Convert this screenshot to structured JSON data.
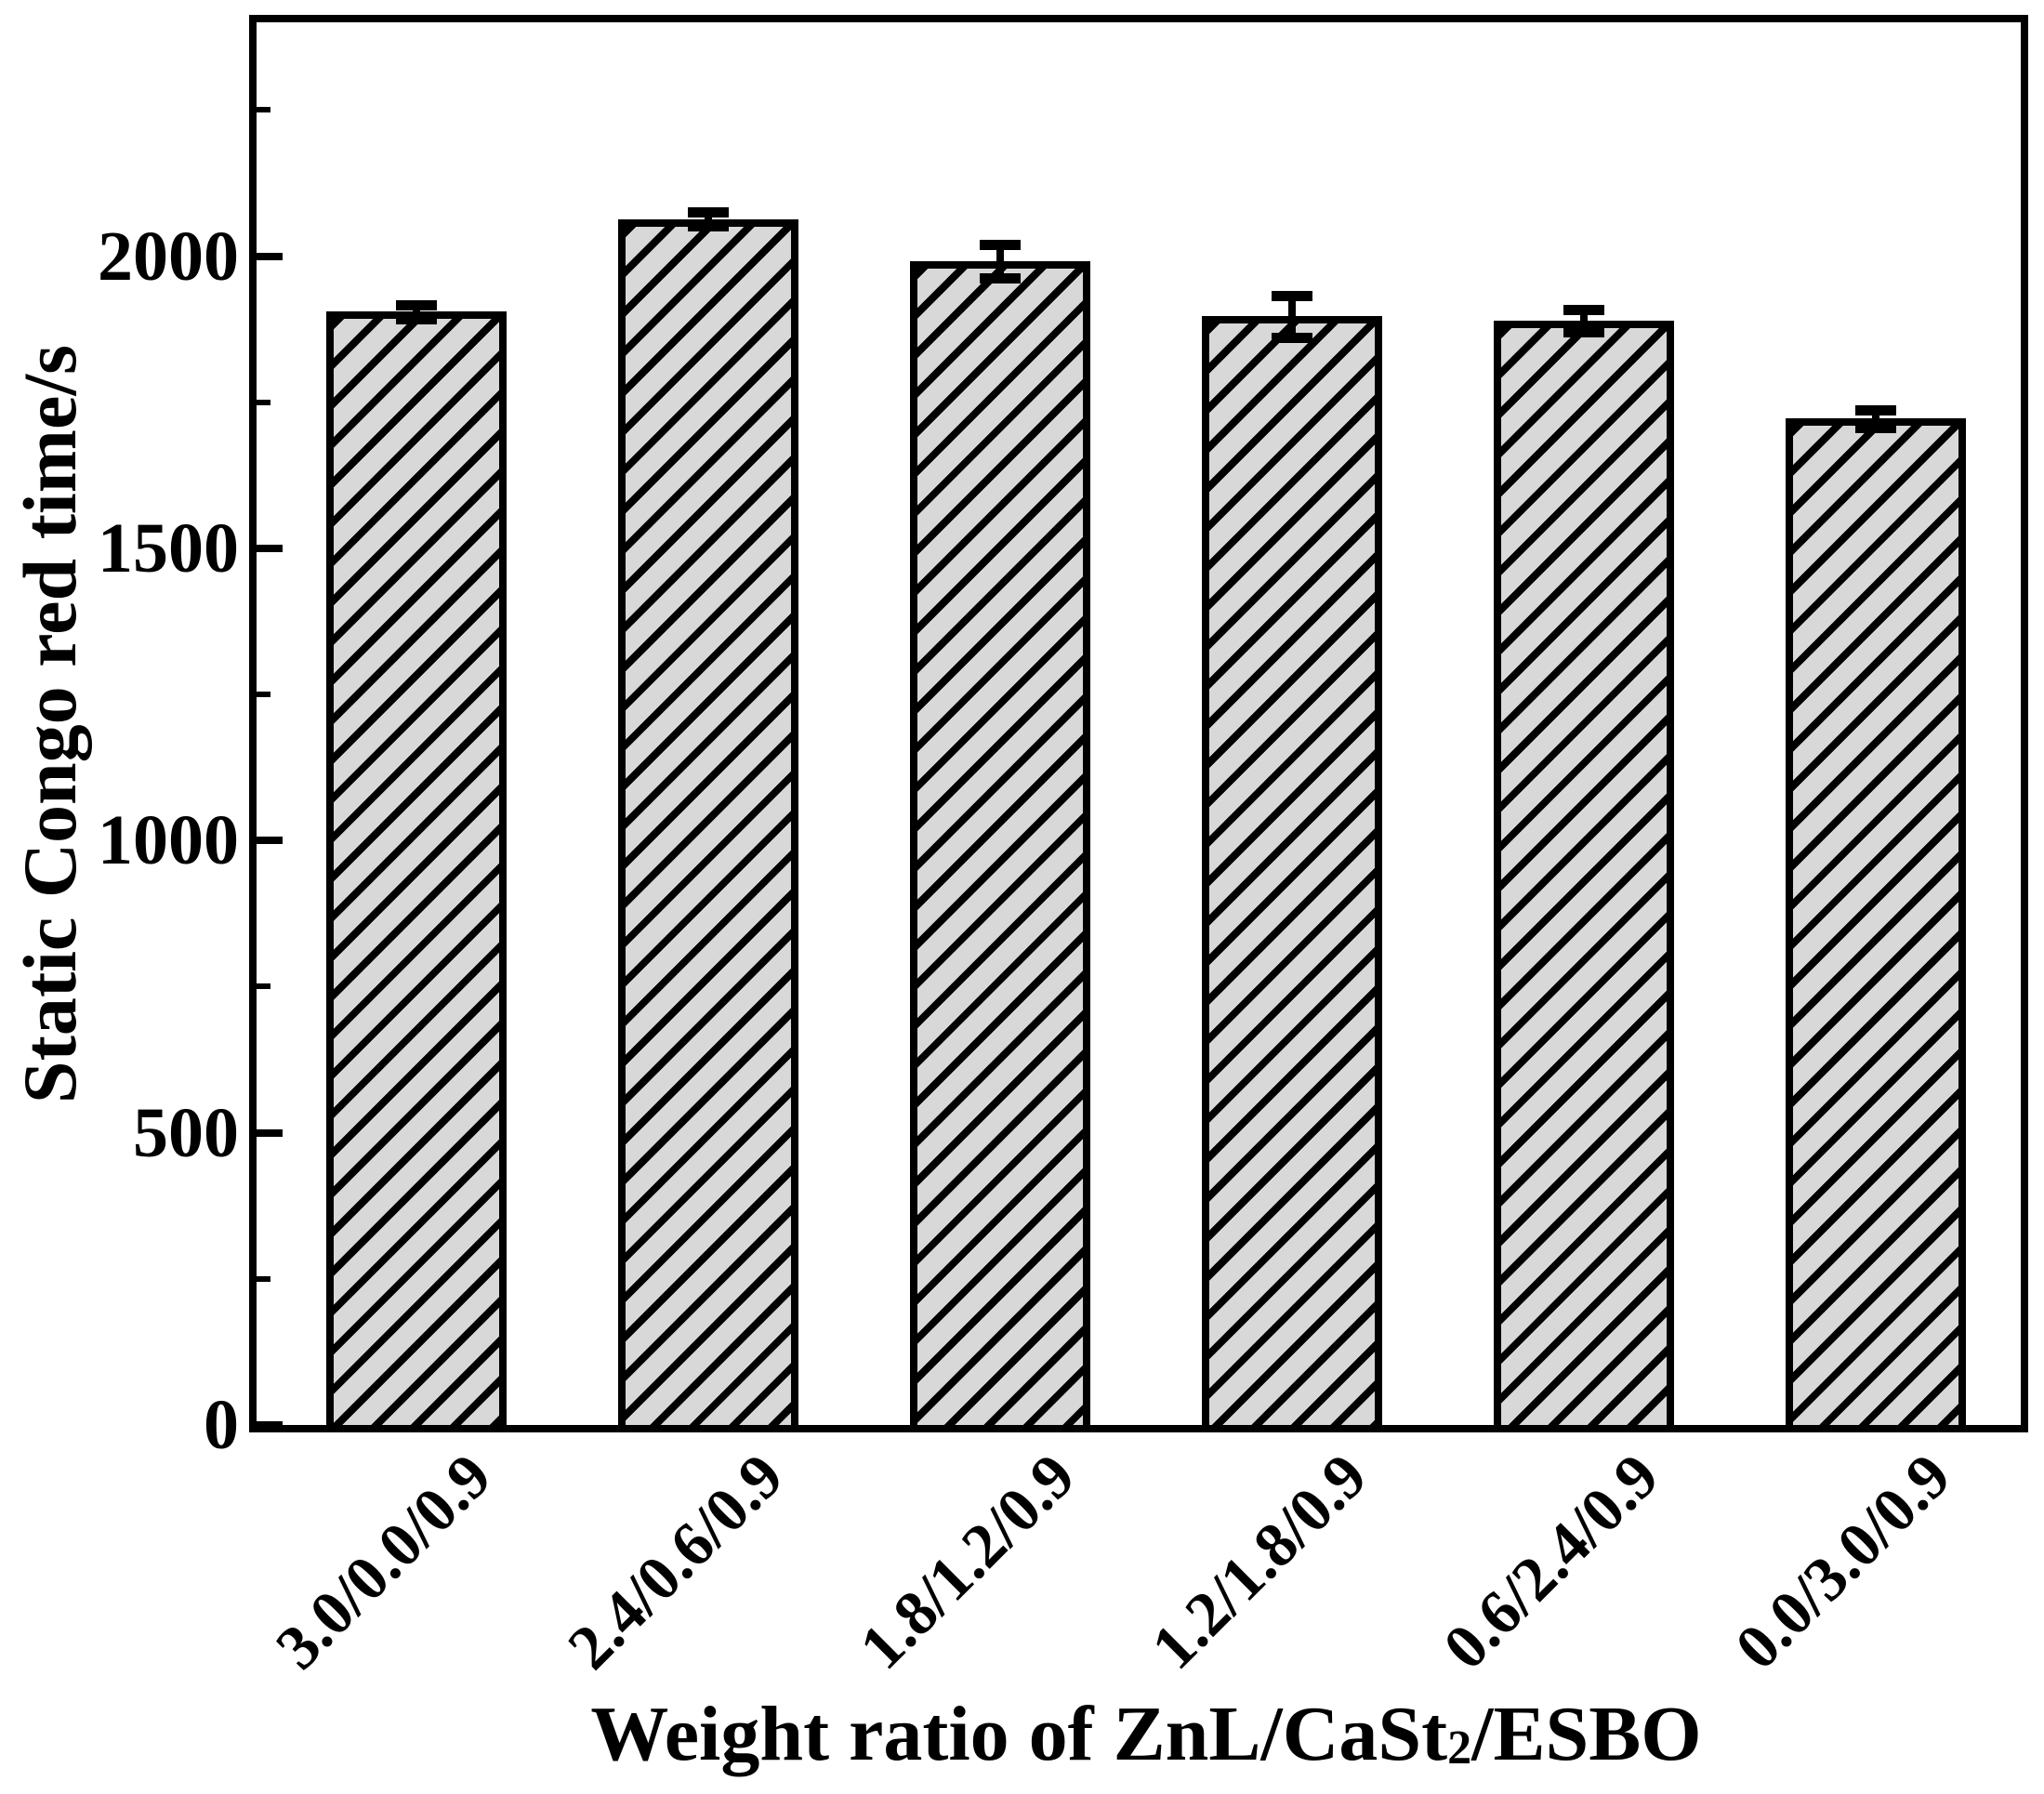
{
  "chart_data": {
    "type": "bar",
    "title": "",
    "ylabel": "Static Congo red time/s",
    "xlabel": "Weight ratio of ZnL/CaSt2/ESBO",
    "xlabel_parts": {
      "pre": "Weight ratio of ZnL/CaSt",
      "sub": "2",
      "post": "/ESBO"
    },
    "categories": [
      "3.0/0.0/0.9",
      "2.4/0.6/0.9",
      "1.8/1.2/0.9",
      "1.2/1.8/0.9",
      "0.6/2.4/0.9",
      "0.0/3.0/0.9"
    ],
    "values": [
      1905,
      2063,
      1991,
      1897,
      1889,
      1722
    ],
    "errors": [
      12,
      12,
      29,
      36,
      19,
      15
    ],
    "ylim": [
      0,
      2400
    ],
    "yticks_major": [
      0,
      500,
      1000,
      1500,
      2000
    ],
    "yticks_minor": [
      250,
      750,
      1250,
      1750,
      2250
    ],
    "grid": "off",
    "legend": "none",
    "bar_fill": "#d8d8d8",
    "hatch_color": "#000000",
    "hatch_direction": "forward-slash",
    "axis_color": "#000000"
  }
}
